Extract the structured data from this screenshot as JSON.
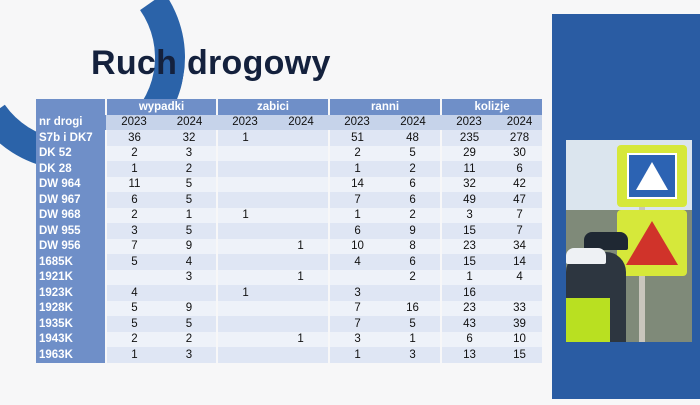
{
  "title": "Ruch drogowy",
  "table": {
    "row_header_label": "nr drogi",
    "groups": [
      "wypadki",
      "zabici",
      "ranni",
      "kolizje"
    ],
    "years": [
      "2023",
      "2024"
    ],
    "rows": [
      {
        "road": "S7b i DK7",
        "values": [
          "36",
          "32",
          "1",
          "",
          "51",
          "48",
          "235",
          "278"
        ]
      },
      {
        "road": "DK 52",
        "values": [
          "2",
          "3",
          "",
          "",
          "2",
          "5",
          "29",
          "30"
        ]
      },
      {
        "road": "DK 28",
        "values": [
          "1",
          "2",
          "",
          "",
          "1",
          "2",
          "11",
          "6"
        ]
      },
      {
        "road": "DW 964",
        "values": [
          "11",
          "5",
          "",
          "",
          "14",
          "6",
          "32",
          "42"
        ]
      },
      {
        "road": "DW 967",
        "values": [
          "6",
          "5",
          "",
          "",
          "7",
          "6",
          "49",
          "47"
        ]
      },
      {
        "road": "DW 968",
        "values": [
          "2",
          "1",
          "1",
          "",
          "1",
          "2",
          "3",
          "7"
        ]
      },
      {
        "road": "DW 955",
        "values": [
          "3",
          "5",
          "",
          "",
          "6",
          "9",
          "15",
          "7"
        ]
      },
      {
        "road": "DW 956",
        "values": [
          "7",
          "9",
          "",
          "1",
          "10",
          "8",
          "23",
          "34"
        ]
      },
      {
        "road": "1685K",
        "values": [
          "5",
          "4",
          "",
          "",
          "4",
          "6",
          "15",
          "14"
        ]
      },
      {
        "road": "1921K",
        "values": [
          "",
          "3",
          "",
          "1",
          "",
          "2",
          "1",
          "4"
        ]
      },
      {
        "road": "1923K",
        "values": [
          "4",
          "",
          "1",
          "",
          "3",
          "",
          "16",
          ""
        ]
      },
      {
        "road": "1928K",
        "values": [
          "5",
          "9",
          "",
          "",
          "7",
          "16",
          "23",
          "33"
        ]
      },
      {
        "road": "1935K",
        "values": [
          "5",
          "5",
          "",
          "",
          "7",
          "5",
          "43",
          "39"
        ]
      },
      {
        "road": "1943K",
        "values": [
          "2",
          "2",
          "",
          "1",
          "3",
          "1",
          "6",
          "10"
        ]
      },
      {
        "road": "1963K",
        "values": [
          "1",
          "3",
          "",
          "",
          "1",
          "3",
          "13",
          "15"
        ]
      }
    ]
  },
  "colors": {
    "accent_blue": "#2a5ca3",
    "header_blue": "#6f8fc8",
    "row_light": "#dfe6f4",
    "title_color": "#14213d"
  },
  "icons": [
    "pedestrian-crossing-sign",
    "children-warning-sign",
    "police-officers-photo"
  ]
}
